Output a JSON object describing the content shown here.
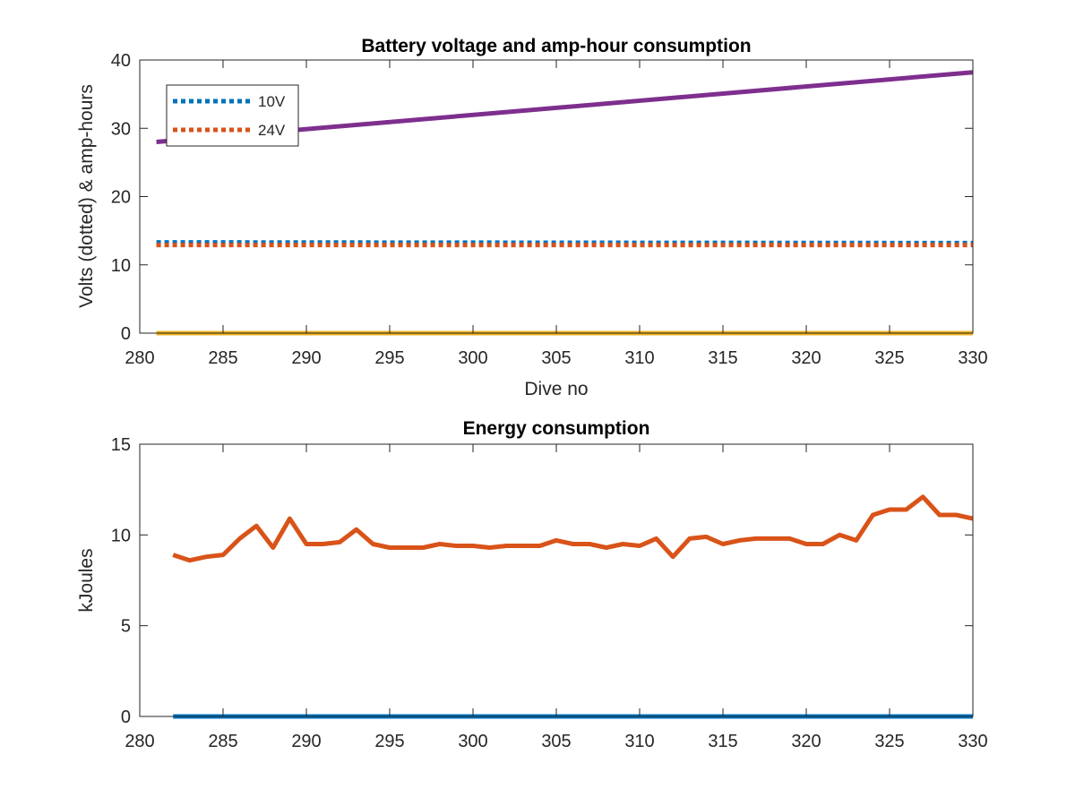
{
  "chart_data": [
    {
      "type": "line",
      "title": "Battery voltage and amp-hour consumption",
      "xlabel": "Dive no",
      "ylabel": "Volts (dotted) & amp-hours",
      "xlim": [
        280,
        330
      ],
      "ylim": [
        0,
        40
      ],
      "xticks": [
        280,
        285,
        290,
        295,
        300,
        305,
        310,
        315,
        320,
        325,
        330
      ],
      "yticks": [
        0,
        10,
        20,
        30,
        40
      ],
      "grid": false,
      "legend_position": "top-left",
      "series": [
        {
          "name": "10V",
          "color": "#0072BD",
          "style": "dotted",
          "x": [
            281,
            330
          ],
          "y": [
            13.3,
            13.2
          ]
        },
        {
          "name": "24V",
          "color": "#D95319",
          "style": "dotted",
          "x": [
            281,
            330
          ],
          "y": [
            12.9,
            12.9
          ]
        },
        {
          "name": "",
          "color": "#EDB120",
          "style": "solid",
          "x": [
            281,
            330
          ],
          "y": [
            0,
            0
          ]
        },
        {
          "name": "",
          "color": "#7E2F8E",
          "style": "solid",
          "x": [
            281,
            330
          ],
          "y": [
            28,
            38.2
          ]
        }
      ]
    },
    {
      "type": "line",
      "title": "Energy consumption",
      "xlabel": "",
      "ylabel": "kJoules",
      "xlim": [
        280,
        330
      ],
      "ylim": [
        0,
        15
      ],
      "xticks": [
        280,
        285,
        290,
        295,
        300,
        305,
        310,
        315,
        320,
        325,
        330
      ],
      "yticks": [
        0,
        5,
        10,
        15
      ],
      "grid": false,
      "series": [
        {
          "name": "",
          "color": "#0072BD",
          "style": "solid",
          "x": [
            282,
            330
          ],
          "y": [
            0,
            0
          ]
        },
        {
          "name": "",
          "color": "#D95319",
          "style": "solid",
          "x": [
            282,
            283,
            284,
            285,
            286,
            287,
            288,
            289,
            290,
            291,
            292,
            293,
            294,
            295,
            296,
            297,
            298,
            299,
            300,
            301,
            302,
            303,
            304,
            305,
            306,
            307,
            308,
            309,
            310,
            311,
            312,
            313,
            314,
            315,
            316,
            317,
            318,
            319,
            320,
            321,
            322,
            323,
            324,
            325,
            326,
            327,
            328,
            329,
            330
          ],
          "y": [
            8.9,
            8.6,
            8.8,
            8.9,
            9.8,
            10.5,
            9.3,
            10.9,
            9.5,
            9.5,
            9.6,
            10.3,
            9.5,
            9.3,
            9.3,
            9.3,
            9.5,
            9.4,
            9.4,
            9.3,
            9.4,
            9.4,
            9.4,
            9.7,
            9.5,
            9.5,
            9.3,
            9.5,
            9.4,
            9.8,
            8.8,
            9.8,
            9.9,
            9.5,
            9.7,
            9.8,
            9.8,
            9.8,
            9.5,
            9.5,
            10.0,
            9.7,
            11.1,
            11.4,
            11.4,
            12.1,
            11.1,
            11.1,
            10.9
          ]
        }
      ]
    }
  ]
}
